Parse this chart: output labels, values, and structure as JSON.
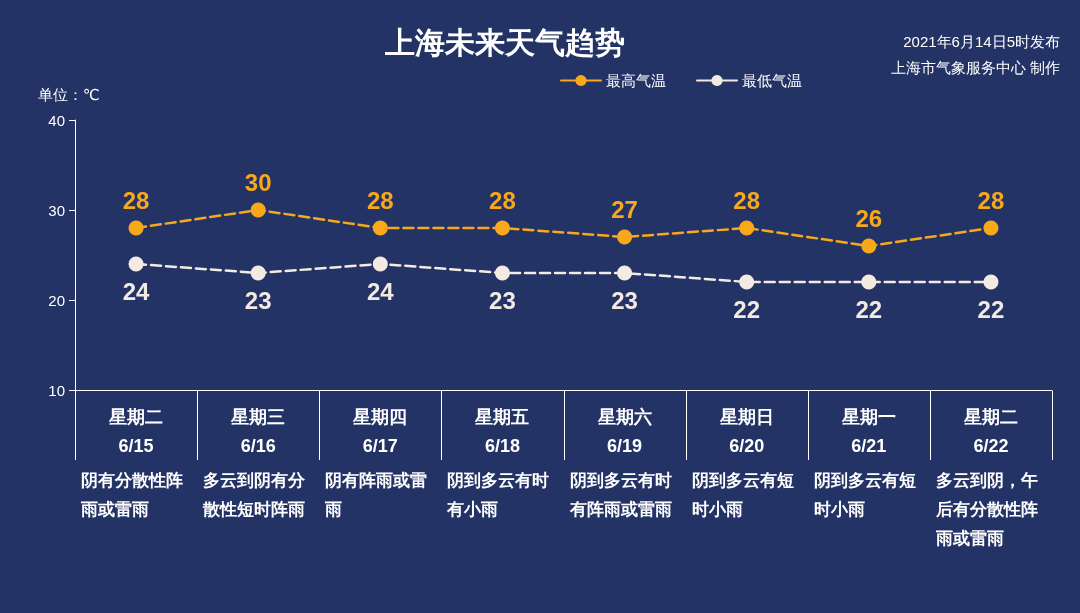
{
  "chart_data": {
    "type": "line",
    "title": "上海未来天气趋势",
    "ylabel": "单位：℃",
    "categories": [
      "星期二\n6/15",
      "星期三\n6/16",
      "星期四\n6/17",
      "星期五\n6/18",
      "星期六\n6/19",
      "星期日\n6/20",
      "星期一\n6/21",
      "星期二\n6/22"
    ],
    "series": [
      {
        "name": "最高气温",
        "color": "#f7a81b",
        "values": [
          28,
          30,
          28,
          28,
          27,
          28,
          26,
          28
        ]
      },
      {
        "name": "最低气温",
        "color": "#f3ebe2",
        "values": [
          24,
          23,
          24,
          23,
          23,
          22,
          22,
          22
        ]
      }
    ],
    "ylim": [
      10,
      40
    ],
    "yticks": [
      10,
      20,
      30,
      40
    ],
    "legend": "top",
    "marker": "circle",
    "line_style": "dashed",
    "data_labels": true,
    "annotations": [
      "2021年6月14日5时发布",
      "上海市气象服务中心 制作",
      "阴有分散性阵雨或雷雨",
      "多云到阴有分散性短时阵雨",
      "阴有阵雨或雷雨",
      "阴到多云有时有小雨",
      "阴到多云有时有阵雨或雷雨",
      "阴到多云有短时小雨",
      "阴到多云有短时小雨",
      "多云到阴，午后有分散性阵雨或雷雨"
    ]
  }
}
